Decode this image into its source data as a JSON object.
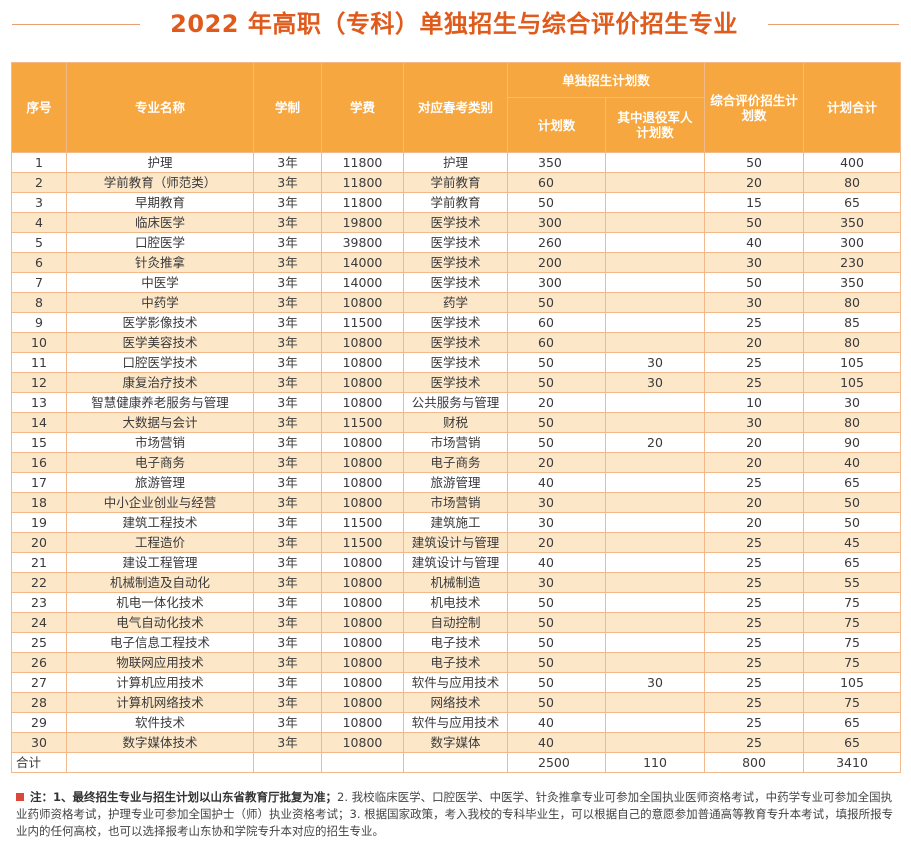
{
  "title": "2022 年高职（专科）单独招生与综合评价招生专业",
  "header": {
    "seq": "序号",
    "major": "专业名称",
    "duration": "学制",
    "fee": "学费",
    "category": "对应春考类别",
    "single_group": "单独招生计划数",
    "single_plan": "计划数",
    "single_veteran": "其中退役军人计划数",
    "comprehensive": "综合评价招生计划数",
    "total": "计划合计"
  },
  "rows": [
    {
      "no": "1",
      "major": "护理",
      "duration": "3年",
      "fee": "11800",
      "category": "护理",
      "plan": "350",
      "veteran": "",
      "comp": "50",
      "total": "400"
    },
    {
      "no": "2",
      "major": "学前教育（师范类）",
      "duration": "3年",
      "fee": "11800",
      "category": "学前教育",
      "plan": "60",
      "veteran": "",
      "comp": "20",
      "total": "80"
    },
    {
      "no": "3",
      "major": "早期教育",
      "duration": "3年",
      "fee": "11800",
      "category": "学前教育",
      "plan": "50",
      "veteran": "",
      "comp": "15",
      "total": "65"
    },
    {
      "no": "4",
      "major": "临床医学",
      "duration": "3年",
      "fee": "19800",
      "category": "医学技术",
      "plan": "300",
      "veteran": "",
      "comp": "50",
      "total": "350"
    },
    {
      "no": "5",
      "major": "口腔医学",
      "duration": "3年",
      "fee": "39800",
      "category": "医学技术",
      "plan": "260",
      "veteran": "",
      "comp": "40",
      "total": "300"
    },
    {
      "no": "6",
      "major": "针灸推拿",
      "duration": "3年",
      "fee": "14000",
      "category": "医学技术",
      "plan": "200",
      "veteran": "",
      "comp": "30",
      "total": "230"
    },
    {
      "no": "7",
      "major": "中医学",
      "duration": "3年",
      "fee": "14000",
      "category": "医学技术",
      "plan": "300",
      "veteran": "",
      "comp": "50",
      "total": "350"
    },
    {
      "no": "8",
      "major": "中药学",
      "duration": "3年",
      "fee": "10800",
      "category": "药学",
      "plan": "50",
      "veteran": "",
      "comp": "30",
      "total": "80"
    },
    {
      "no": "9",
      "major": "医学影像技术",
      "duration": "3年",
      "fee": "11500",
      "category": "医学技术",
      "plan": "60",
      "veteran": "",
      "comp": "25",
      "total": "85"
    },
    {
      "no": "10",
      "major": "医学美容技术",
      "duration": "3年",
      "fee": "10800",
      "category": "医学技术",
      "plan": "60",
      "veteran": "",
      "comp": "20",
      "total": "80"
    },
    {
      "no": "11",
      "major": "口腔医学技术",
      "duration": "3年",
      "fee": "10800",
      "category": "医学技术",
      "plan": "50",
      "veteran": "30",
      "comp": "25",
      "total": "105"
    },
    {
      "no": "12",
      "major": "康复治疗技术",
      "duration": "3年",
      "fee": "10800",
      "category": "医学技术",
      "plan": "50",
      "veteran": "30",
      "comp": "25",
      "total": "105"
    },
    {
      "no": "13",
      "major": "智慧健康养老服务与管理",
      "duration": "3年",
      "fee": "10800",
      "category": "公共服务与管理",
      "plan": "20",
      "veteran": "",
      "comp": "10",
      "total": "30"
    },
    {
      "no": "14",
      "major": "大数据与会计",
      "duration": "3年",
      "fee": "11500",
      "category": "财税",
      "plan": "50",
      "veteran": "",
      "comp": "30",
      "total": "80"
    },
    {
      "no": "15",
      "major": "市场营销",
      "duration": "3年",
      "fee": "10800",
      "category": "市场营销",
      "plan": "50",
      "veteran": "20",
      "comp": "20",
      "total": "90"
    },
    {
      "no": "16",
      "major": "电子商务",
      "duration": "3年",
      "fee": "10800",
      "category": "电子商务",
      "plan": "20",
      "veteran": "",
      "comp": "20",
      "total": "40"
    },
    {
      "no": "17",
      "major": "旅游管理",
      "duration": "3年",
      "fee": "10800",
      "category": "旅游管理",
      "plan": "40",
      "veteran": "",
      "comp": "25",
      "total": "65"
    },
    {
      "no": "18",
      "major": "中小企业创业与经营",
      "duration": "3年",
      "fee": "10800",
      "category": "市场营销",
      "plan": "30",
      "veteran": "",
      "comp": "20",
      "total": "50"
    },
    {
      "no": "19",
      "major": "建筑工程技术",
      "duration": "3年",
      "fee": "11500",
      "category": "建筑施工",
      "plan": "30",
      "veteran": "",
      "comp": "20",
      "total": "50"
    },
    {
      "no": "20",
      "major": "工程造价",
      "duration": "3年",
      "fee": "11500",
      "category": "建筑设计与管理",
      "plan": "20",
      "veteran": "",
      "comp": "25",
      "total": "45"
    },
    {
      "no": "21",
      "major": "建设工程管理",
      "duration": "3年",
      "fee": "10800",
      "category": "建筑设计与管理",
      "plan": "40",
      "veteran": "",
      "comp": "25",
      "total": "65"
    },
    {
      "no": "22",
      "major": "机械制造及自动化",
      "duration": "3年",
      "fee": "10800",
      "category": "机械制造",
      "plan": "30",
      "veteran": "",
      "comp": "25",
      "total": "55"
    },
    {
      "no": "23",
      "major": "机电一体化技术",
      "duration": "3年",
      "fee": "10800",
      "category": "机电技术",
      "plan": "50",
      "veteran": "",
      "comp": "25",
      "total": "75"
    },
    {
      "no": "24",
      "major": "电气自动化技术",
      "duration": "3年",
      "fee": "10800",
      "category": "自动控制",
      "plan": "50",
      "veteran": "",
      "comp": "25",
      "total": "75"
    },
    {
      "no": "25",
      "major": "电子信息工程技术",
      "duration": "3年",
      "fee": "10800",
      "category": "电子技术",
      "plan": "50",
      "veteran": "",
      "comp": "25",
      "total": "75"
    },
    {
      "no": "26",
      "major": "物联网应用技术",
      "duration": "3年",
      "fee": "10800",
      "category": "电子技术",
      "plan": "50",
      "veteran": "",
      "comp": "25",
      "total": "75"
    },
    {
      "no": "27",
      "major": "计算机应用技术",
      "duration": "3年",
      "fee": "10800",
      "category": "软件与应用技术",
      "plan": "50",
      "veteran": "30",
      "comp": "25",
      "total": "105"
    },
    {
      "no": "28",
      "major": "计算机网络技术",
      "duration": "3年",
      "fee": "10800",
      "category": "网络技术",
      "plan": "50",
      "veteran": "",
      "comp": "25",
      "total": "75"
    },
    {
      "no": "29",
      "major": "软件技术",
      "duration": "3年",
      "fee": "10800",
      "category": "软件与应用技术",
      "plan": "40",
      "veteran": "",
      "comp": "25",
      "total": "65"
    },
    {
      "no": "30",
      "major": "数字媒体技术",
      "duration": "3年",
      "fee": "10800",
      "category": "数字媒体",
      "plan": "40",
      "veteran": "",
      "comp": "25",
      "total": "65"
    }
  ],
  "total_row": {
    "label": "合计",
    "plan": "2500",
    "veteran": "110",
    "comp": "800",
    "total": "3410"
  },
  "note": {
    "prefix": "注：",
    "bold": "1、最终招生专业与招生计划以山东省教育厅批复为准；",
    "rest": "2. 我校临床医学、口腔医学、中医学、针灸推拿专业可参加全国执业医师资格考试，中药学专业可参加全国执业药师资格考试，护理专业可参加全国护士（师）执业资格考试；3. 根据国家政策，考入我校的专科毕业生，可以根据自己的意愿参加普通高等教育专升本考试，填报所报专业内的任何高校，也可以选择报考山东协和学院专升本对应的招生专业。"
  },
  "colors": {
    "title": "#e05a1c",
    "header_bg": "#f7a73f",
    "stripe": "#fde7c9",
    "border": "#f3b98a",
    "bullet": "#d9483b"
  }
}
